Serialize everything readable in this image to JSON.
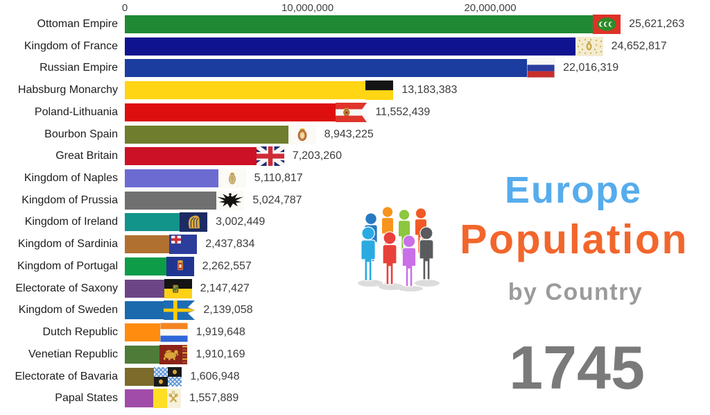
{
  "title": {
    "line1": "Europe",
    "line2": "Population",
    "line3": "by Country",
    "year": "1745",
    "line1_color": "#56ACEC",
    "line2_color": "#F2662C",
    "line3_color": "#9B9B9B",
    "year_color": "#7A7A7A"
  },
  "chart_data": {
    "type": "bar",
    "orientation": "horizontal",
    "title": "Europe Population by Country",
    "year": "1745",
    "xlim": [
      0,
      26000000
    ],
    "x_ticks": [
      "0",
      "10,000,000",
      "20,000,000"
    ],
    "x_tick_values": [
      0,
      10000000,
      20000000
    ],
    "categories": [
      "Ottoman Empire",
      "Kingdom of France",
      "Russian Empire",
      "Habsburg Monarchy",
      "Poland-Lithuania",
      "Bourbon Spain",
      "Great Britain",
      "Kingdom of Naples",
      "Kingdom of Prussia",
      "Kingdom of Ireland",
      "Kingdom of Sardinia",
      "Kingdom of Portugal",
      "Electorate of Saxony",
      "Kingdom of Sweden",
      "Dutch Republic",
      "Venetian Republic",
      "Electorate of Bavaria",
      "Papal States"
    ],
    "values": [
      25621263,
      24652817,
      22016319,
      13183383,
      11552439,
      8943225,
      7203260,
      5110817,
      5024787,
      3002449,
      2437834,
      2262557,
      2147427,
      2139058,
      1919648,
      1910169,
      1606948,
      1557889
    ],
    "display_values": [
      "25,621,263",
      "24,652,817",
      "22,016,319",
      "13,183,383",
      "11,552,439",
      "8,943,225",
      "7,203,260",
      "5,110,817",
      "5,024,787",
      "3,002,449",
      "2,437,834",
      "2,262,557",
      "2,147,427",
      "2,139,058",
      "1,919,648",
      "1,910,169",
      "1,606,948",
      "1,557,889"
    ],
    "bar_colors": [
      "#1F8A33",
      "#10138F",
      "#1C3DA0",
      "#FFD514",
      "#DE0F0F",
      "#6E7E2E",
      "#CC1126",
      "#6B6BD2",
      "#707070",
      "#12948A",
      "#B07030",
      "#0E9C49",
      "#6C4586",
      "#1A6AAD",
      "#FF8C0E",
      "#4E7B38",
      "#7C6B2B",
      "#A04CA8"
    ],
    "flag_icons": [
      "ottoman-flag-icon",
      "france-royal-flag-icon",
      "russia-flag-icon",
      "habsburg-flag-icon",
      "poland-lithuania-flag-icon",
      "bourbon-spain-flag-icon",
      "great-britain-flag-icon",
      "naples-flag-icon",
      "prussia-flag-icon",
      "ireland-flag-icon",
      "sardinia-flag-icon",
      "portugal-flag-icon",
      "saxony-flag-icon",
      "sweden-flag-icon",
      "dutch-republic-flag-icon",
      "venice-flag-icon",
      "bavaria-flag-icon",
      "papal-states-flag-icon"
    ]
  }
}
